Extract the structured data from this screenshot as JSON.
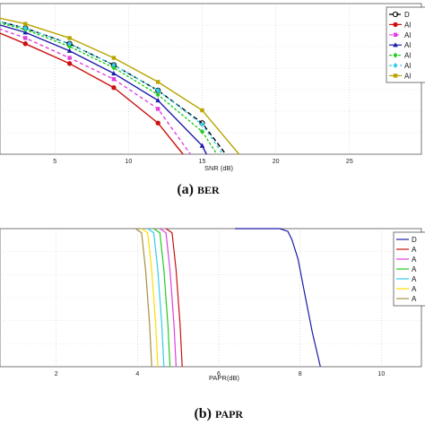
{
  "panel_a": {
    "caption_letter": "(a)",
    "caption_word": "BER",
    "chart_data": {
      "type": "line",
      "xlabel": "SNR (dB)",
      "ylabel": "",
      "xlim": [
        0,
        30
      ],
      "x_ticks": [
        "5",
        "10",
        "15",
        "20",
        "25"
      ],
      "grid": true,
      "legend": "top-right",
      "series": [
        {
          "name": "D",
          "color": "#000000",
          "dash": "5,3",
          "marker": "circle",
          "x": [
            0,
            3,
            6,
            9,
            12,
            15,
            16.6
          ],
          "y": [
            0.97,
            0.89,
            0.78,
            0.63,
            0.45,
            0.22,
            0.0
          ]
        },
        {
          "name": "Al",
          "color": "#cc1111",
          "dash": "",
          "marker": "dot",
          "x": [
            0,
            3,
            6,
            9,
            12,
            13.7
          ],
          "y": [
            0.91,
            0.78,
            0.64,
            0.47,
            0.22,
            0.0
          ]
        },
        {
          "name": "Al",
          "color": "#e040e0",
          "dash": "4,3",
          "marker": "square",
          "x": [
            0,
            3,
            6,
            9,
            12,
            14.2
          ],
          "y": [
            0.93,
            0.82,
            0.68,
            0.53,
            0.32,
            0.0
          ]
        },
        {
          "name": "Al",
          "color": "#1a1aaa",
          "dash": "",
          "marker": "triangle",
          "x": [
            0,
            3,
            6,
            9,
            12,
            15,
            15.3
          ],
          "y": [
            0.95,
            0.86,
            0.73,
            0.57,
            0.38,
            0.06,
            0.0
          ]
        },
        {
          "name": "Al",
          "color": "#22cc22",
          "dash": "3,2",
          "marker": "diamond",
          "x": [
            0,
            3,
            6,
            9,
            12,
            15,
            16.0
          ],
          "y": [
            0.96,
            0.88,
            0.76,
            0.61,
            0.42,
            0.16,
            0.0
          ]
        },
        {
          "name": "Al",
          "color": "#33ccee",
          "dash": "3,3",
          "marker": "diamond",
          "x": [
            0,
            3,
            6,
            9,
            12,
            15,
            16.4
          ],
          "y": [
            0.97,
            0.89,
            0.78,
            0.63,
            0.45,
            0.21,
            0.0
          ]
        },
        {
          "name": "Al",
          "color": "#b8a400",
          "dash": "",
          "marker": "square",
          "x": [
            0,
            3,
            6,
            9,
            12,
            15,
            17.5
          ],
          "y": [
            0.99,
            0.92,
            0.82,
            0.68,
            0.51,
            0.31,
            0.0
          ]
        }
      ]
    }
  },
  "panel_b": {
    "caption_letter": "(b)",
    "caption_word": "PAPR",
    "chart_data": {
      "type": "line",
      "xlabel": "PAPR(dB)",
      "ylabel": "",
      "xlim": [
        0,
        12
      ],
      "x_ticks": [
        "2",
        "4",
        "6",
        "8",
        "10"
      ],
      "grid": true,
      "legend": "top-right",
      "series": [
        {
          "name": "D",
          "color": "#1a1aaa",
          "x": [
            6.4,
            7.0,
            7.5,
            7.7,
            7.8,
            7.95,
            8.1,
            8.3,
            8.5
          ],
          "y": [
            1.0,
            1.0,
            1.0,
            0.98,
            0.92,
            0.78,
            0.55,
            0.25,
            0.0
          ]
        },
        {
          "name": "A",
          "color": "#cc1111",
          "x": [
            4.7,
            4.85,
            4.95,
            5.05,
            5.1
          ],
          "y": [
            1.0,
            0.97,
            0.7,
            0.3,
            0.0
          ]
        },
        {
          "name": "A",
          "color": "#e040e0",
          "x": [
            4.55,
            4.7,
            4.8,
            4.9,
            4.95
          ],
          "y": [
            1.0,
            0.97,
            0.7,
            0.3,
            0.0
          ]
        },
        {
          "name": "A",
          "color": "#22cc22",
          "x": [
            4.4,
            4.55,
            4.65,
            4.75,
            4.8
          ],
          "y": [
            1.0,
            0.97,
            0.7,
            0.3,
            0.0
          ]
        },
        {
          "name": "A",
          "color": "#33ccee",
          "x": [
            4.25,
            4.4,
            4.5,
            4.6,
            4.65
          ],
          "y": [
            1.0,
            0.97,
            0.7,
            0.3,
            0.0
          ]
        },
        {
          "name": "A",
          "color": "#ffdd00",
          "x": [
            4.1,
            4.25,
            4.35,
            4.45,
            4.5
          ],
          "y": [
            1.0,
            0.97,
            0.7,
            0.3,
            0.0
          ]
        },
        {
          "name": "A",
          "color": "#a89040",
          "x": [
            3.95,
            4.1,
            4.2,
            4.3,
            4.35
          ],
          "y": [
            1.0,
            0.97,
            0.7,
            0.3,
            0.0
          ]
        }
      ]
    }
  }
}
